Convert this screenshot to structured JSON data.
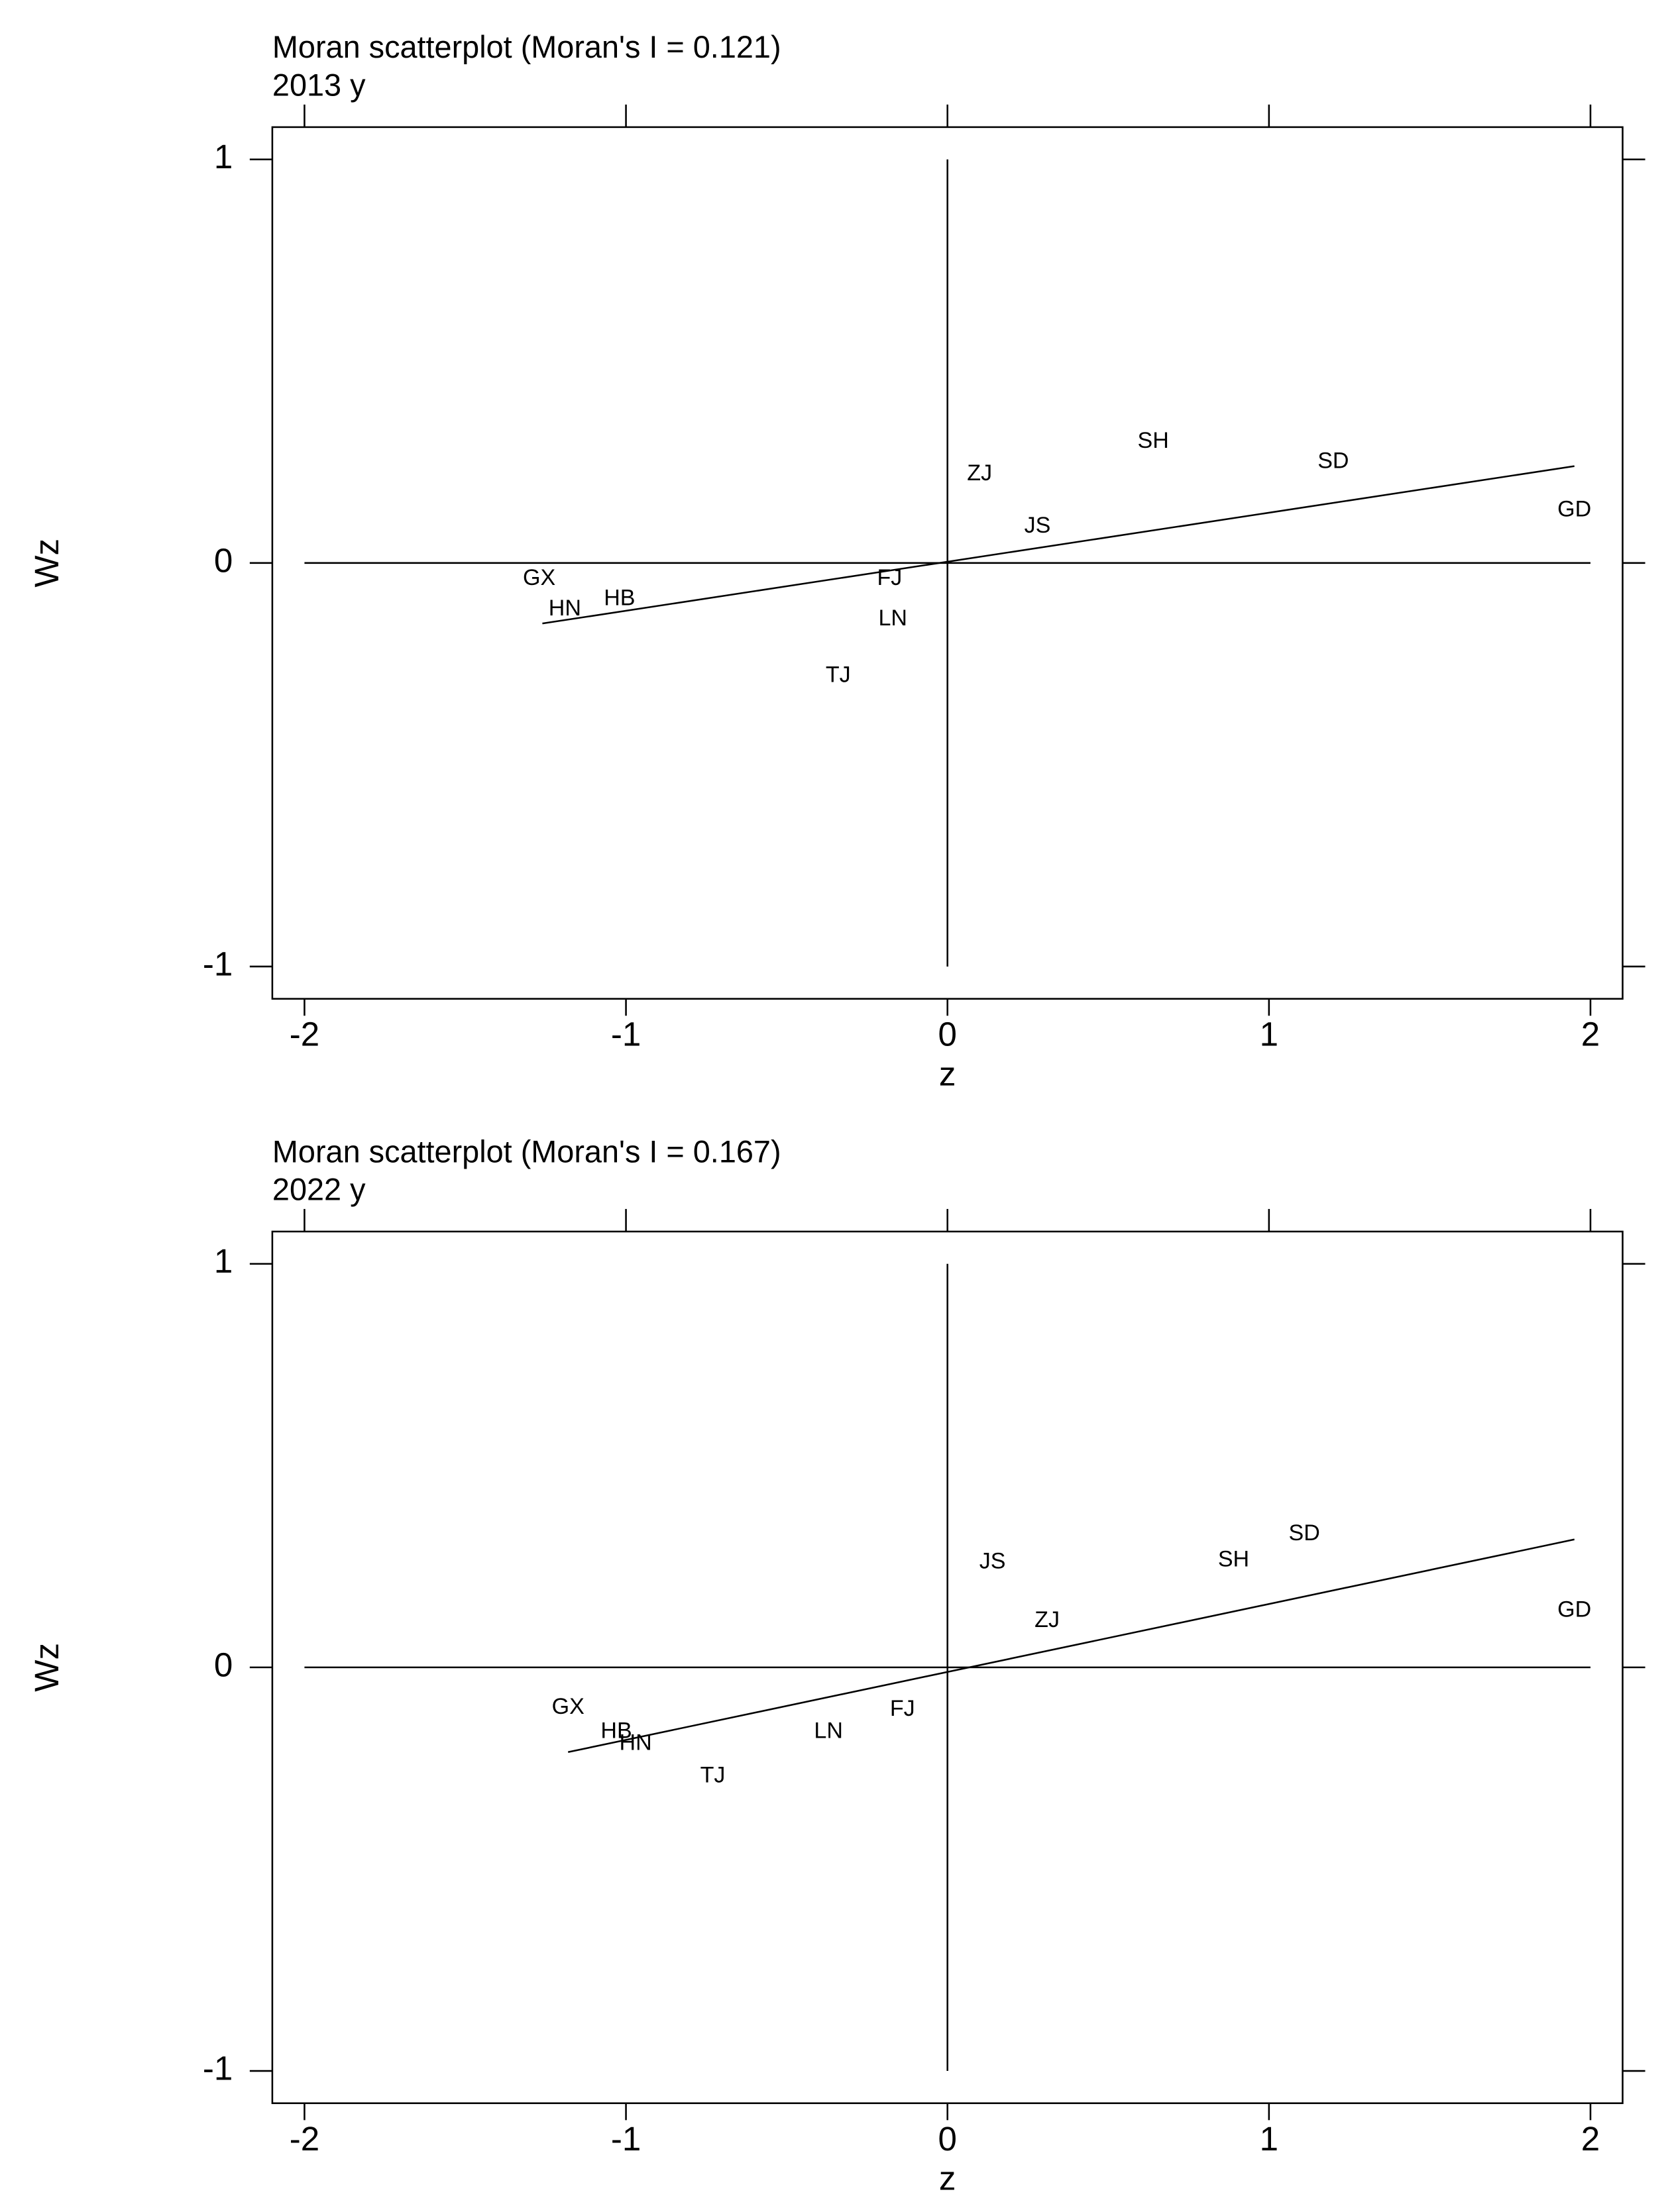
{
  "chart_data": [
    {
      "type": "scatter",
      "title": "Moran scatterplot (Moran's I = 0.121)",
      "subtitle": "2013 y",
      "x_label": "z",
      "y_label": "Wz",
      "xlim": [
        -2.1,
        2.1
      ],
      "ylim": [
        -1.08,
        1.08
      ],
      "xticks": [
        -2,
        -1,
        0,
        1,
        2
      ],
      "yticks": [
        -1,
        0,
        1
      ],
      "labels": [
        "GX",
        "HN",
        "HB",
        "FJ",
        "LN",
        "TJ",
        "ZJ",
        "JS",
        "SH",
        "SD",
        "GD"
      ],
      "x": [
        -1.27,
        -1.19,
        -1.02,
        -0.18,
        -0.17,
        -0.34,
        0.1,
        0.28,
        0.64,
        1.2,
        1.95
      ],
      "values": [
        -0.04,
        -0.115,
        -0.09,
        -0.04,
        -0.14,
        -0.28,
        0.22,
        0.09,
        0.3,
        0.25,
        0.13
      ],
      "fit_line": {
        "x": [
          -1.26,
          1.95
        ],
        "values": [
          -0.15,
          0.24
        ]
      }
    },
    {
      "type": "scatter",
      "title": "Moran scatterplot (Moran's I = 0.167)",
      "subtitle": "2022 y",
      "x_label": "z",
      "y_label": "Wz",
      "xlim": [
        -2.1,
        2.1
      ],
      "ylim": [
        -1.08,
        1.08
      ],
      "xticks": [
        -2,
        -1,
        0,
        1,
        2
      ],
      "yticks": [
        -1,
        0,
        1
      ],
      "labels": [
        "GX",
        "HB",
        "HN",
        "TJ",
        "LN",
        "FJ",
        "JS",
        "ZJ",
        "SH",
        "SD",
        "GD"
      ],
      "x": [
        -1.18,
        -1.03,
        -0.97,
        -0.73,
        -0.37,
        -0.14,
        0.14,
        0.31,
        0.89,
        1.11,
        1.95
      ],
      "values": [
        -0.1,
        -0.16,
        -0.19,
        -0.27,
        -0.16,
        -0.105,
        0.26,
        0.115,
        0.265,
        0.33,
        0.14
      ],
      "fit_line": {
        "x": [
          -1.18,
          1.95
        ],
        "values": [
          -0.21,
          0.317
        ]
      }
    }
  ]
}
